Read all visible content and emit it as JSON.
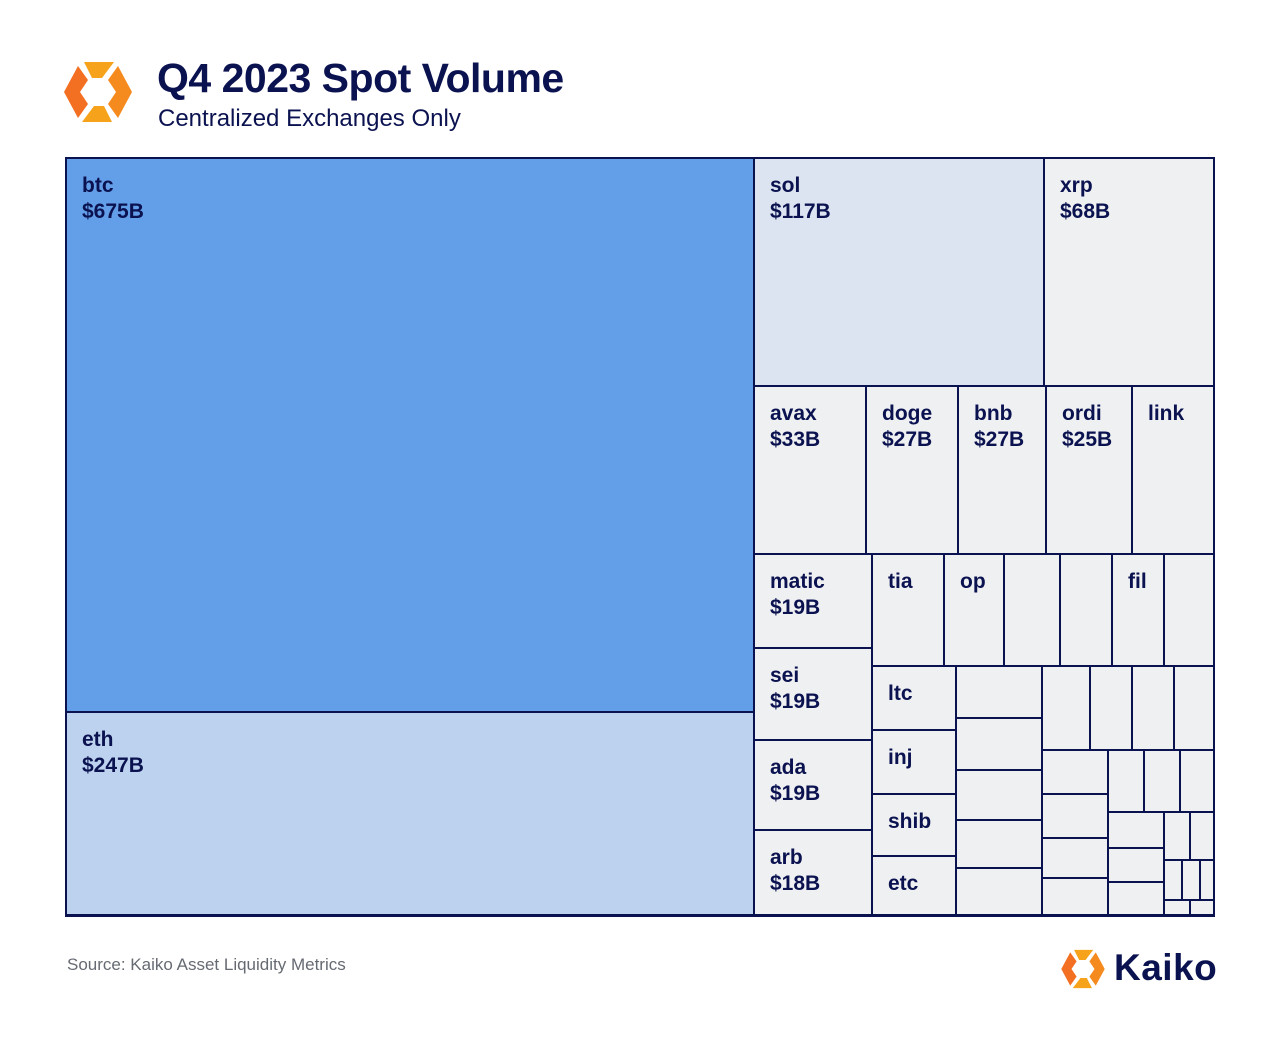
{
  "header": {
    "title": "Q4 2023 Spot Volume",
    "subtitle": "Centralized Exchanges Only"
  },
  "footer": {
    "source": "Source: Kaiko Asset Liquidity Metrics",
    "brand": "Kaiko"
  },
  "colors": {
    "btc": "#639ee8",
    "eth": "#bcd2ee",
    "mid": "#dbe4f0",
    "small": "#eff0f2",
    "border": "#0b1250"
  },
  "chart_data": {
    "type": "treemap",
    "units": "USD billions",
    "items": [
      {
        "label": "btc",
        "value": 675,
        "value_label": "$675B"
      },
      {
        "label": "eth",
        "value": 247,
        "value_label": "$247B"
      },
      {
        "label": "sol",
        "value": 117,
        "value_label": "$117B"
      },
      {
        "label": "xrp",
        "value": 68,
        "value_label": "$68B"
      },
      {
        "label": "avax",
        "value": 33,
        "value_label": "$33B"
      },
      {
        "label": "doge",
        "value": 27,
        "value_label": "$27B"
      },
      {
        "label": "bnb",
        "value": 27,
        "value_label": "$27B"
      },
      {
        "label": "ordi",
        "value": 25,
        "value_label": "$25B"
      },
      {
        "label": "link",
        "value": 22,
        "value_label": ""
      },
      {
        "label": "matic",
        "value": 19,
        "value_label": "$19B"
      },
      {
        "label": "sei",
        "value": 19,
        "value_label": "$19B"
      },
      {
        "label": "ada",
        "value": 19,
        "value_label": "$19B"
      },
      {
        "label": "arb",
        "value": 18,
        "value_label": "$18B"
      },
      {
        "label": "tia",
        "value": 14,
        "value_label": ""
      },
      {
        "label": "op",
        "value": 11,
        "value_label": ""
      },
      {
        "label": "fil",
        "value": 10,
        "value_label": ""
      },
      {
        "label": "ltc",
        "value": 11,
        "value_label": ""
      },
      {
        "label": "inj",
        "value": 11,
        "value_label": ""
      },
      {
        "label": "shib",
        "value": 10,
        "value_label": ""
      },
      {
        "label": "etc",
        "value": 10,
        "value_label": ""
      }
    ]
  }
}
